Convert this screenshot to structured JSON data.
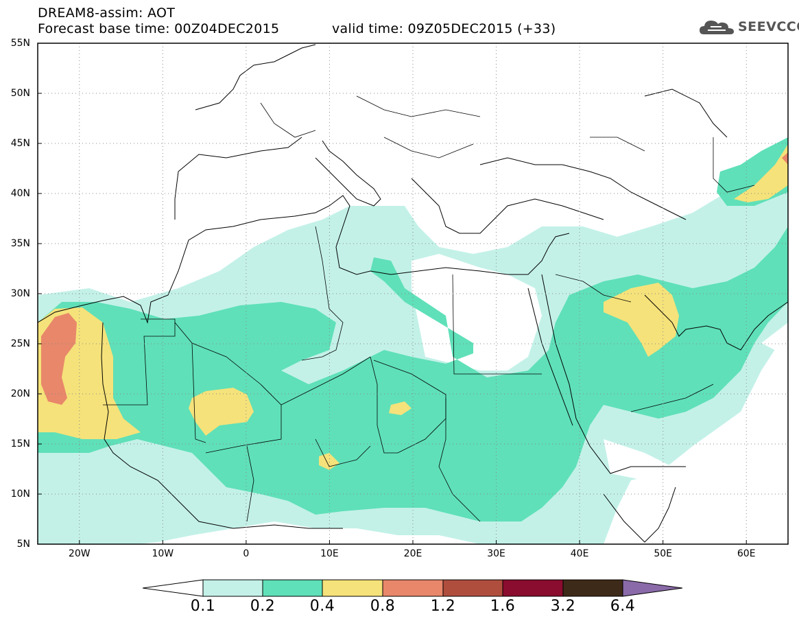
{
  "header": {
    "title_line1": "DREAM8-assim: AOT",
    "title_line2": "Forecast base time: 00Z04DEC2015",
    "valid_time": "valid time: 09Z05DEC2015 (+33)",
    "logo_text": "SEEVCCC"
  },
  "map": {
    "lon_range": [
      -25,
      65
    ],
    "lat_range": [
      5,
      55
    ],
    "lat_ticks": [
      "5N",
      "10N",
      "15N",
      "20N",
      "25N",
      "30N",
      "35N",
      "40N",
      "45N",
      "50N",
      "55N"
    ],
    "lon_ticks": [
      "20W",
      "10W",
      "0",
      "10E",
      "20E",
      "30E",
      "40E",
      "50E",
      "60E"
    ],
    "lat_values": [
      5,
      10,
      15,
      20,
      25,
      30,
      35,
      40,
      45,
      50,
      55
    ],
    "lon_values": [
      -20,
      -10,
      0,
      10,
      20,
      30,
      40,
      50,
      60
    ],
    "grid": "dotted"
  },
  "colorbar": {
    "labels": [
      "0.1",
      "0.2",
      "0.4",
      "0.8",
      "1.2",
      "1.6",
      "3.2",
      "6.4"
    ],
    "colors": [
      "#ffffff",
      "#c3f1e8",
      "#5fe0b8",
      "#f5e27a",
      "#e8876a",
      "#b04e3e",
      "#8a0c2e",
      "#3e2a19",
      "#8a6aa8"
    ]
  },
  "colors": {
    "aot_0_1": "#c3f1e8",
    "aot_0_2": "#5fe0b8",
    "aot_0_4": "#f5e27a",
    "aot_0_8": "#e8876a",
    "aot_1_2": "#b04e3e",
    "coast": "#000000"
  }
}
